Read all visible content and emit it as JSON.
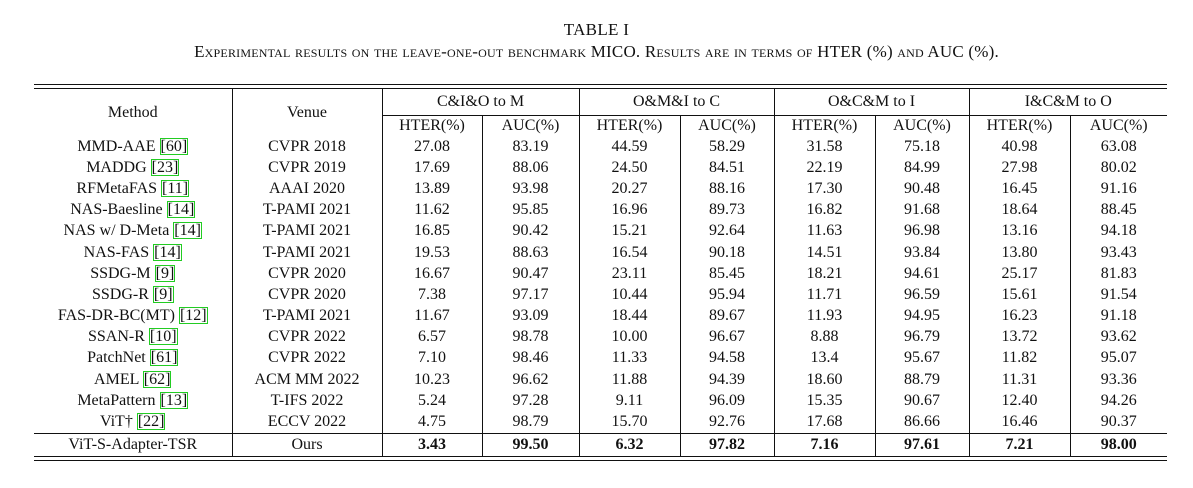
{
  "caption": {
    "label": "TABLE I",
    "text": "Experimental results on the leave-one-out benchmark MICO. Results are in terms of HTER (%) and AUC (%)."
  },
  "table": {
    "col_method": "Method",
    "col_venue": "Venue",
    "groups": [
      "C&I&O to M",
      "O&M&I to C",
      "O&C&M to I",
      "I&C&M to O"
    ],
    "sub_hter": "HTER(%)",
    "sub_auc": "AUC(%)",
    "rows": [
      {
        "method": "MMD-AAE",
        "cite": "[60]",
        "venue": "CVPR 2018",
        "v": [
          "27.08",
          "83.19",
          "44.59",
          "58.29",
          "31.58",
          "75.18",
          "40.98",
          "63.08"
        ]
      },
      {
        "method": "MADDG",
        "cite": "[23]",
        "venue": "CVPR 2019",
        "v": [
          "17.69",
          "88.06",
          "24.50",
          "84.51",
          "22.19",
          "84.99",
          "27.98",
          "80.02"
        ]
      },
      {
        "method": "RFMetaFAS",
        "cite": "[11]",
        "venue": "AAAI 2020",
        "v": [
          "13.89",
          "93.98",
          "20.27",
          "88.16",
          "17.30",
          "90.48",
          "16.45",
          "91.16"
        ]
      },
      {
        "method": "NAS-Baesline",
        "cite": "[14]",
        "venue": "T-PAMI 2021",
        "v": [
          "11.62",
          "95.85",
          "16.96",
          "89.73",
          "16.82",
          "91.68",
          "18.64",
          "88.45"
        ]
      },
      {
        "method": "NAS w/ D-Meta",
        "cite": "[14]",
        "venue": "T-PAMI 2021",
        "v": [
          "16.85",
          "90.42",
          "15.21",
          "92.64",
          "11.63",
          "96.98",
          "13.16",
          "94.18"
        ]
      },
      {
        "method": "NAS-FAS",
        "cite": "[14]",
        "venue": "T-PAMI 2021",
        "v": [
          "19.53",
          "88.63",
          "16.54",
          "90.18",
          "14.51",
          "93.84",
          "13.80",
          "93.43"
        ]
      },
      {
        "method": "SSDG-M",
        "cite": "[9]",
        "venue": "CVPR 2020",
        "v": [
          "16.67",
          "90.47",
          "23.11",
          "85.45",
          "18.21",
          "94.61",
          "25.17",
          "81.83"
        ]
      },
      {
        "method": "SSDG-R",
        "cite": "[9]",
        "venue": "CVPR 2020",
        "v": [
          "7.38",
          "97.17",
          "10.44",
          "95.94",
          "11.71",
          "96.59",
          "15.61",
          "91.54"
        ]
      },
      {
        "method": "FAS-DR-BC(MT)",
        "cite": "[12]",
        "venue": "T-PAMI 2021",
        "v": [
          "11.67",
          "93.09",
          "18.44",
          "89.67",
          "11.93",
          "94.95",
          "16.23",
          "91.18"
        ]
      },
      {
        "method": "SSAN-R",
        "cite": "[10]",
        "venue": "CVPR 2022",
        "v": [
          "6.57",
          "98.78",
          "10.00",
          "96.67",
          "8.88",
          "96.79",
          "13.72",
          "93.62"
        ]
      },
      {
        "method": "PatchNet",
        "cite": "[61]",
        "venue": "CVPR 2022",
        "v": [
          "7.10",
          "98.46",
          "11.33",
          "94.58",
          "13.4",
          "95.67",
          "11.82",
          "95.07"
        ]
      },
      {
        "method": "AMEL",
        "cite": "[62]",
        "venue": "ACM MM 2022",
        "v": [
          "10.23",
          "96.62",
          "11.88",
          "94.39",
          "18.60",
          "88.79",
          "11.31",
          "93.36"
        ]
      },
      {
        "method": "MetaPattern",
        "cite": "[13]",
        "venue": "T-IFS 2022",
        "v": [
          "5.24",
          "97.28",
          "9.11",
          "96.09",
          "15.35",
          "90.67",
          "12.40",
          "94.26"
        ]
      },
      {
        "method": "ViT†",
        "cite": "[22]",
        "venue": "ECCV 2022",
        "v": [
          "4.75",
          "98.79",
          "15.70",
          "92.76",
          "17.68",
          "86.66",
          "16.46",
          "90.37"
        ]
      }
    ],
    "final": {
      "method": "ViT-S-Adapter-TSR",
      "venue": "Ours",
      "v": [
        "3.43",
        "99.50",
        "6.32",
        "97.82",
        "7.16",
        "97.61",
        "7.21",
        "98.00"
      ]
    }
  }
}
